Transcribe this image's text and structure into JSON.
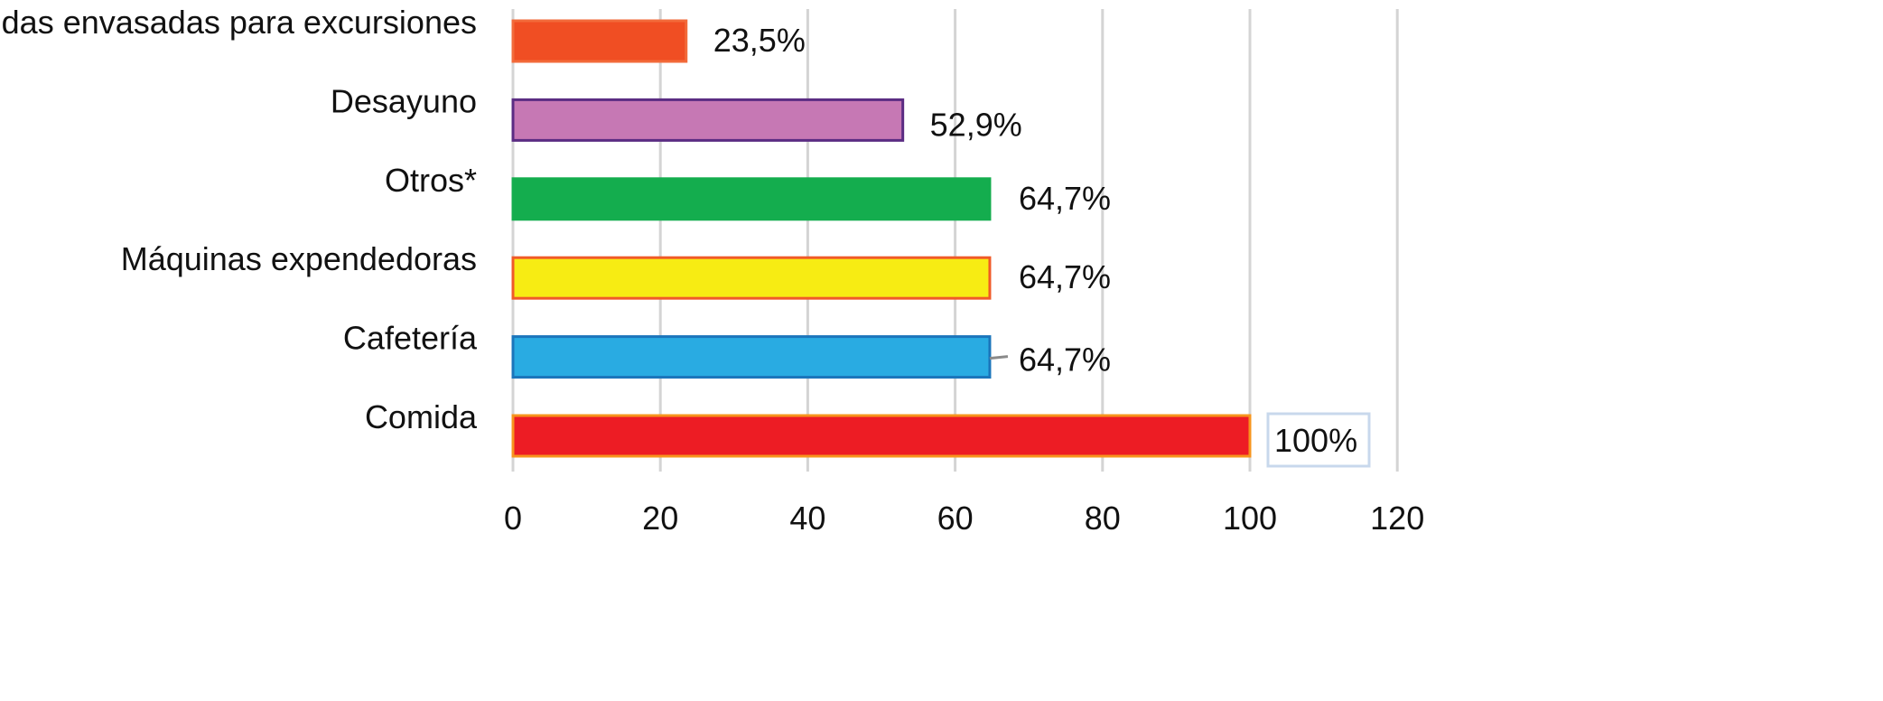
{
  "chart_data": {
    "type": "bar",
    "orientation": "horizontal",
    "categories": [
      "Comidas envasadas para excursiones",
      "Desayuno",
      "Otros*",
      "Máquinas expendedoras",
      "Cafetería",
      "Comida"
    ],
    "values": [
      23.5,
      52.9,
      64.7,
      64.7,
      64.7,
      100
    ],
    "data_labels": [
      "23,5%",
      "52,9%",
      "64,7%",
      "64,7%",
      "64,7%",
      "100%"
    ],
    "colors": [
      {
        "fill": "#f04e23",
        "stroke": "#f26a3a"
      },
      {
        "fill": "#c678b4",
        "stroke": "#5b2c83"
      },
      {
        "fill": "#14ad4e",
        "stroke": "#14ad4e"
      },
      {
        "fill": "#f7ec13",
        "stroke": "#f05a28"
      },
      {
        "fill": "#29abe2",
        "stroke": "#1b75bb"
      },
      {
        "fill": "#ed1c24",
        "stroke": "#f7941d"
      }
    ],
    "xlim": [
      0,
      120
    ],
    "x_ticks": [
      0,
      20,
      40,
      60,
      80,
      100,
      120
    ],
    "grid": true,
    "title": "",
    "xlabel": "",
    "ylabel": ""
  }
}
